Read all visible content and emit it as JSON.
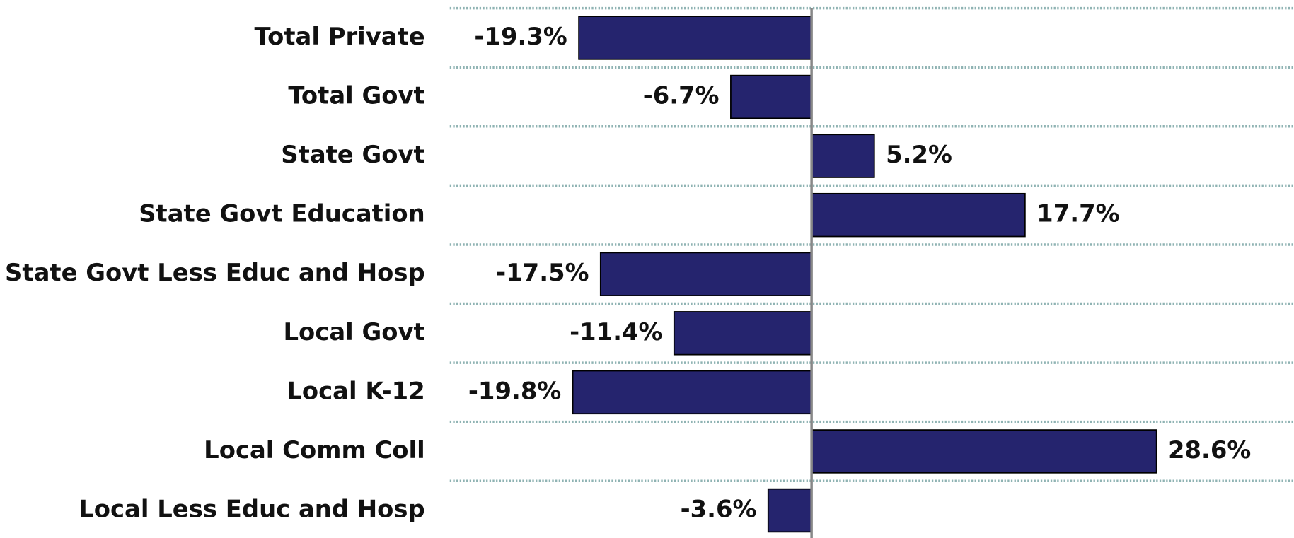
{
  "chart_data": {
    "type": "hbar",
    "categories": [
      "Total Private",
      "Total Govt",
      "State Govt",
      "State Govt Education",
      "State Govt Less Educ and Hosp",
      "Local Govt",
      "Local K-12",
      "Local Comm Coll",
      "Local Less Educ and Hosp"
    ],
    "values": [
      -19.3,
      -6.7,
      5.2,
      17.7,
      -17.5,
      -11.4,
      -19.8,
      28.6,
      -3.6
    ],
    "value_labels": [
      "-19.3%",
      "-6.7%",
      "5.2%",
      "17.7%",
      "-17.5%",
      "-11.4%",
      "-19.8%",
      "28.6%",
      "-3.6%"
    ],
    "color": "#25246e",
    "xlim": [
      -30,
      40
    ],
    "grid": true
  }
}
